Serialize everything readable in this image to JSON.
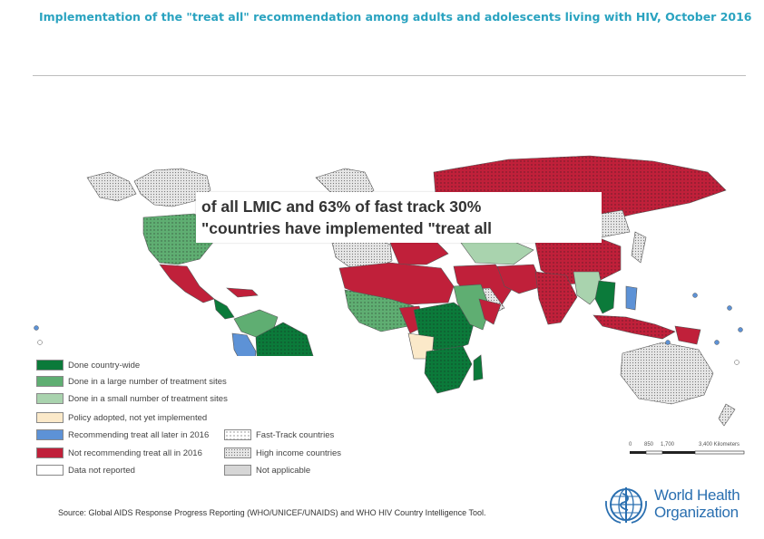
{
  "title": "Implementation of the \"treat all\" recommendation among adults and adolescents living with HIV, October 2016",
  "callout": {
    "line1": "of all LMIC and 63% of fast track 30%",
    "line2": "\"countries have implemented \"treat all"
  },
  "legend": {
    "left_column": [
      {
        "label": "Done country-wide",
        "color": "#0b7a3a"
      },
      {
        "label": "Done in a large number of treatment sites",
        "color": "#5fae72"
      },
      {
        "label": "Done in a small number of treatment sites",
        "color": "#a9d3ae"
      },
      {
        "label": "Policy adopted, not yet implemented",
        "color": "#fbe9c9"
      },
      {
        "label": "Recommending treat all later in 2016",
        "color": "#5d92d6"
      },
      {
        "label": "Not recommending treat all in 2016",
        "color": "#c0203a"
      },
      {
        "label": "Data not reported",
        "color": "#ffffff"
      }
    ],
    "right_column": [
      {
        "label": "Fast-Track countries",
        "pattern": "dots"
      },
      {
        "label": "High income countries",
        "pattern": "hatch"
      },
      {
        "label": "Not applicable",
        "color": "#d6d6d6"
      }
    ]
  },
  "scale": {
    "labels": [
      "0",
      "850",
      "1,700",
      "3,400 Kilometers"
    ]
  },
  "source": "Source: Global AIDS Response Progress Reporting (WHO/UNICEF/UNAIDS) and WHO HIV Country Intelligence Tool.",
  "organization": {
    "line1": "World Health",
    "line2": "Organization"
  }
}
